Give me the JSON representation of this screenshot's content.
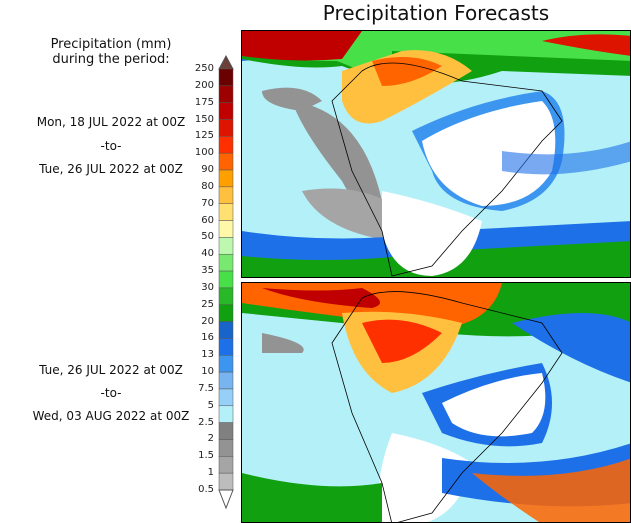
{
  "title": "Precipitation Forecasts",
  "legend": {
    "header_line1": "Precipitation (mm)",
    "header_line2": "during the period:",
    "labels": [
      "250",
      "200",
      "175",
      "150",
      "125",
      "100",
      "90",
      "80",
      "70",
      "60",
      "50",
      "40",
      "35",
      "30",
      "25",
      "20",
      "16",
      "13",
      "10",
      "7.5",
      "5",
      "2.5",
      "2",
      "1.5",
      "1",
      "0.5"
    ],
    "colors": [
      "#6b0000",
      "#9c0000",
      "#c00000",
      "#dc1400",
      "#ff3000",
      "#ff6400",
      "#ffa000",
      "#ffc040",
      "#ffe070",
      "#fff8a8",
      "#bef8b0",
      "#78e870",
      "#48e048",
      "#28b828",
      "#10a010",
      "#1864c8",
      "#1e70e8",
      "#3c96f0",
      "#78b4f0",
      "#96d0f8",
      "#b4f0f8",
      "#808080",
      "#939393",
      "#a5a5a5",
      "#bdbdbd"
    ],
    "over_color": "#6b4038",
    "under_color": "#ffffff"
  },
  "periods": [
    {
      "start": "Mon, 18 JUL 2022 at 00Z",
      "sep": "-to-",
      "end": "Tue, 26 JUL 2022 at 00Z"
    },
    {
      "start": "Tue, 26 JUL 2022 at 00Z",
      "sep": "-to-",
      "end": "Wed, 03 AUG 2022 at 00Z"
    }
  ]
}
